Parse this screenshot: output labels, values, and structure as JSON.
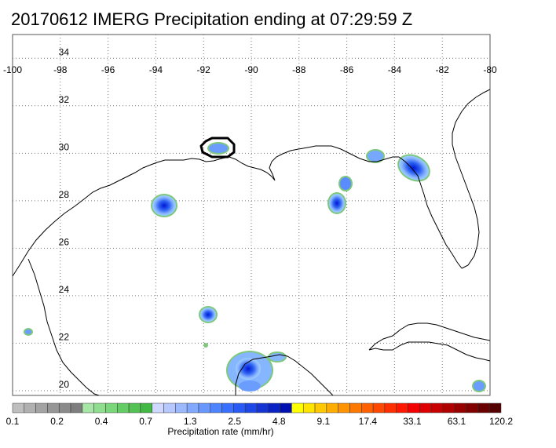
{
  "title": "20170612 IMERG Precipitation ending at 07:29:59 Z",
  "map": {
    "lon_labels": [
      "-100",
      "-98",
      "-96",
      "-94",
      "-92",
      "-90",
      "-88",
      "-86",
      "-84",
      "-82",
      "-80"
    ],
    "lat_labels": [
      "34",
      "32",
      "30",
      "28",
      "26",
      "24",
      "22",
      "20"
    ],
    "lon_range": [
      -100,
      -80
    ],
    "lat_range": [
      19.8,
      35
    ],
    "grid": "dotted",
    "highlight_box": "black-oval"
  },
  "colorbar": {
    "title": "Precipitation rate (mm/hr)",
    "labels": [
      "0.1",
      "0.2",
      "0.4",
      "0.7",
      "1.3",
      "2.5",
      "4.8",
      "9.1",
      "17.4",
      "33.1",
      "63.1",
      "120.2"
    ],
    "colors": [
      "#bebebe",
      "#b0b0b0",
      "#a3a3a3",
      "#969696",
      "#8a8a8a",
      "#7e7e7e",
      "#a6e6a6",
      "#8fde8f",
      "#79d679",
      "#64cc64",
      "#52c252",
      "#44b844",
      "#cfd8ff",
      "#b6c8ff",
      "#9cb8ff",
      "#82a8ff",
      "#6898ff",
      "#4e84ff",
      "#3a70ff",
      "#2a5cf5",
      "#1e48e6",
      "#1434d4",
      "#0a22c2",
      "#0010b0",
      "#ffff00",
      "#ffe400",
      "#ffc800",
      "#ffad00",
      "#ff9300",
      "#ff7800",
      "#ff6000",
      "#ff4800",
      "#ff3000",
      "#ff1800",
      "#f20000",
      "#de0000",
      "#c80000",
      "#b00000",
      "#980000",
      "#800000",
      "#6a0000",
      "#540000"
    ]
  }
}
